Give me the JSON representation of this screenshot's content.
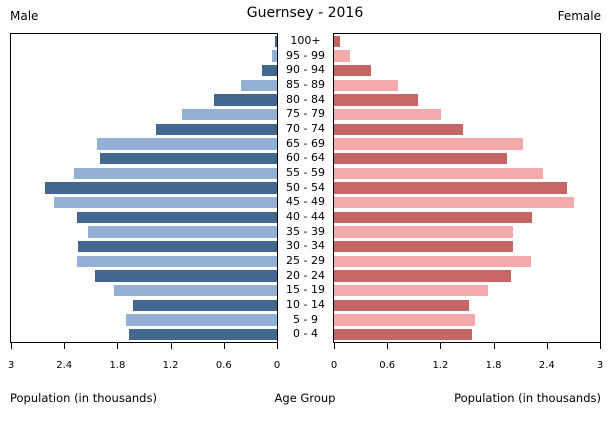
{
  "title": "Guernsey - 2016",
  "headers": {
    "male": "Male",
    "female": "Female"
  },
  "axis": {
    "left_caption": "Population (in thousands)",
    "center_caption": "Age Group",
    "right_caption": "Population (in thousands)",
    "tick_labels_left": [
      "3",
      "2.4",
      "1.8",
      "1.2",
      "0.6",
      "0"
    ],
    "tick_labels_right": [
      "0",
      "0.6",
      "1.2",
      "1.8",
      "2.4",
      "3"
    ]
  },
  "colors": {
    "male_dark": "#44678f",
    "male_light": "#92b1d5",
    "female_dark": "#c76666",
    "female_light": "#f2aaad",
    "axis_line": "#000000",
    "background": "#ffffff"
  },
  "chart_data": {
    "type": "bar",
    "subtype": "population-pyramid",
    "title": "Guernsey - 2016",
    "xlabel": "Population (in thousands)",
    "ylabel": "Age Group",
    "xlim": [
      0,
      3
    ],
    "xticks": [
      0,
      0.6,
      1.2,
      1.8,
      2.4,
      3
    ],
    "grid": false,
    "age_groups": [
      "0 - 4",
      "5 - 9",
      "10 - 14",
      "15 - 19",
      "20 - 24",
      "25 - 29",
      "30 - 34",
      "35 - 39",
      "40 - 44",
      "45 - 49",
      "50 - 54",
      "55 - 59",
      "60 - 64",
      "65 - 69",
      "70 - 74",
      "75 - 79",
      "80 - 84",
      "85 - 89",
      "90 - 94",
      "95 - 99",
      "100+"
    ],
    "series": [
      {
        "name": "Male",
        "side": "left",
        "values": [
          1.67,
          1.7,
          1.62,
          1.84,
          2.05,
          2.26,
          2.25,
          2.13,
          2.26,
          2.52,
          2.62,
          2.29,
          2.0,
          2.03,
          1.36,
          1.07,
          0.71,
          0.41,
          0.17,
          0.06,
          0.02
        ]
      },
      {
        "name": "Female",
        "side": "right",
        "values": [
          1.56,
          1.59,
          1.52,
          1.74,
          2.0,
          2.22,
          2.02,
          2.02,
          2.23,
          2.71,
          2.63,
          2.36,
          1.95,
          2.13,
          1.45,
          1.21,
          0.95,
          0.72,
          0.42,
          0.18,
          0.07
        ]
      }
    ]
  }
}
